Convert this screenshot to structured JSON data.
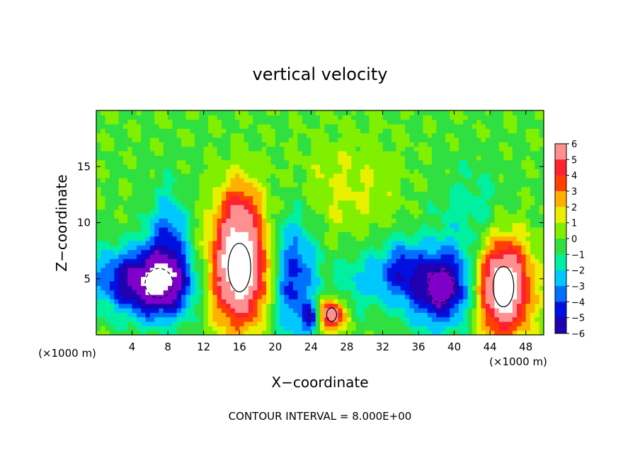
{
  "chart_data": {
    "type": "heatmap",
    "title": "vertical velocity",
    "xlabel": "X−coordinate",
    "ylabel": "Z−coordinate",
    "x_unit_left": "(×1000 m)",
    "x_unit_right": "(×1000 m)",
    "xlim": [
      0,
      50
    ],
    "ylim": [
      0,
      20
    ],
    "x_ticks": [
      4,
      8,
      12,
      16,
      20,
      24,
      28,
      32,
      36,
      40,
      44,
      48
    ],
    "y_ticks": [
      5,
      10,
      15
    ],
    "footnote": "CONTOUR INTERVAL = 8.000E+00",
    "colorbar": {
      "ticks": [
        6,
        5,
        4,
        3,
        2,
        1,
        0,
        -1,
        -2,
        -3,
        -4,
        -5,
        -6
      ],
      "tick_labels": [
        "6",
        "5",
        "4",
        "3",
        "2",
        "1",
        "0",
        "−1",
        "−2",
        "−3",
        "−4",
        "−5",
        "−6"
      ],
      "range": [
        -6,
        6
      ]
    },
    "background_value": 0.4,
    "features": [
      {
        "sign": "down",
        "x": 7,
        "z": 4.6,
        "sx": 2.8,
        "sz": 2.2,
        "amp": -7.5
      },
      {
        "sign": "down",
        "x": 8,
        "z": 9.0,
        "sx": 1.6,
        "sz": 3.0,
        "amp": -3.2
      },
      {
        "sign": "down",
        "x": 2,
        "z": 5.0,
        "sx": 2.5,
        "sz": 2.0,
        "amp": -3.0
      },
      {
        "sign": "up",
        "x": 16,
        "z": 6.0,
        "sx": 2.3,
        "sz": 3.6,
        "amp": 9.0
      },
      {
        "sign": "up",
        "x": 16,
        "z": 11.5,
        "sx": 1.5,
        "sz": 2.0,
        "amp": 2.5
      },
      {
        "sign": "down",
        "x": 22,
        "z": 5.0,
        "sx": 1.8,
        "sz": 4.0,
        "amp": -4.5
      },
      {
        "sign": "down",
        "x": 24,
        "z": 1.5,
        "sx": 0.6,
        "sz": 0.8,
        "amp": -4.0
      },
      {
        "sign": "up",
        "x": 26.3,
        "z": 1.8,
        "sx": 1.0,
        "sz": 1.0,
        "amp": 7.0
      },
      {
        "sign": "down",
        "x": 30,
        "z": 5.0,
        "sx": 2.5,
        "sz": 2.0,
        "amp": -2.2
      },
      {
        "sign": "down",
        "x": 38.5,
        "z": 4.3,
        "sx": 2.6,
        "sz": 2.4,
        "amp": -7.0
      },
      {
        "sign": "down",
        "x": 34,
        "z": 6.0,
        "sx": 1.5,
        "sz": 2.0,
        "amp": -3.0
      },
      {
        "sign": "up",
        "x": 45.5,
        "z": 4.3,
        "sx": 2.1,
        "sz": 3.0,
        "amp": 9.0
      },
      {
        "sign": "up",
        "x": 28,
        "z": 13.0,
        "sx": 4.0,
        "sz": 3.0,
        "amp": 1.3
      },
      {
        "sign": "down",
        "x": 42,
        "z": 11.0,
        "sx": 3.0,
        "sz": 3.0,
        "amp": -1.5
      }
    ],
    "colors": {
      "c_neg6": "#7f00c8",
      "c_neg5": "#2000b0",
      "c_neg4": "#0010e0",
      "c_neg3": "#0070ff",
      "c_neg2": "#00c8ff",
      "c_neg1": "#00f0a0",
      "c_0": "#30e040",
      "c_1": "#80f000",
      "c_2": "#e8f000",
      "c_3": "#ffb000",
      "c_4": "#ff4000",
      "c_5": "#ff2030",
      "c_6": "#ff9090",
      "saturated": "#ffffff",
      "contour": "#000000"
    }
  }
}
